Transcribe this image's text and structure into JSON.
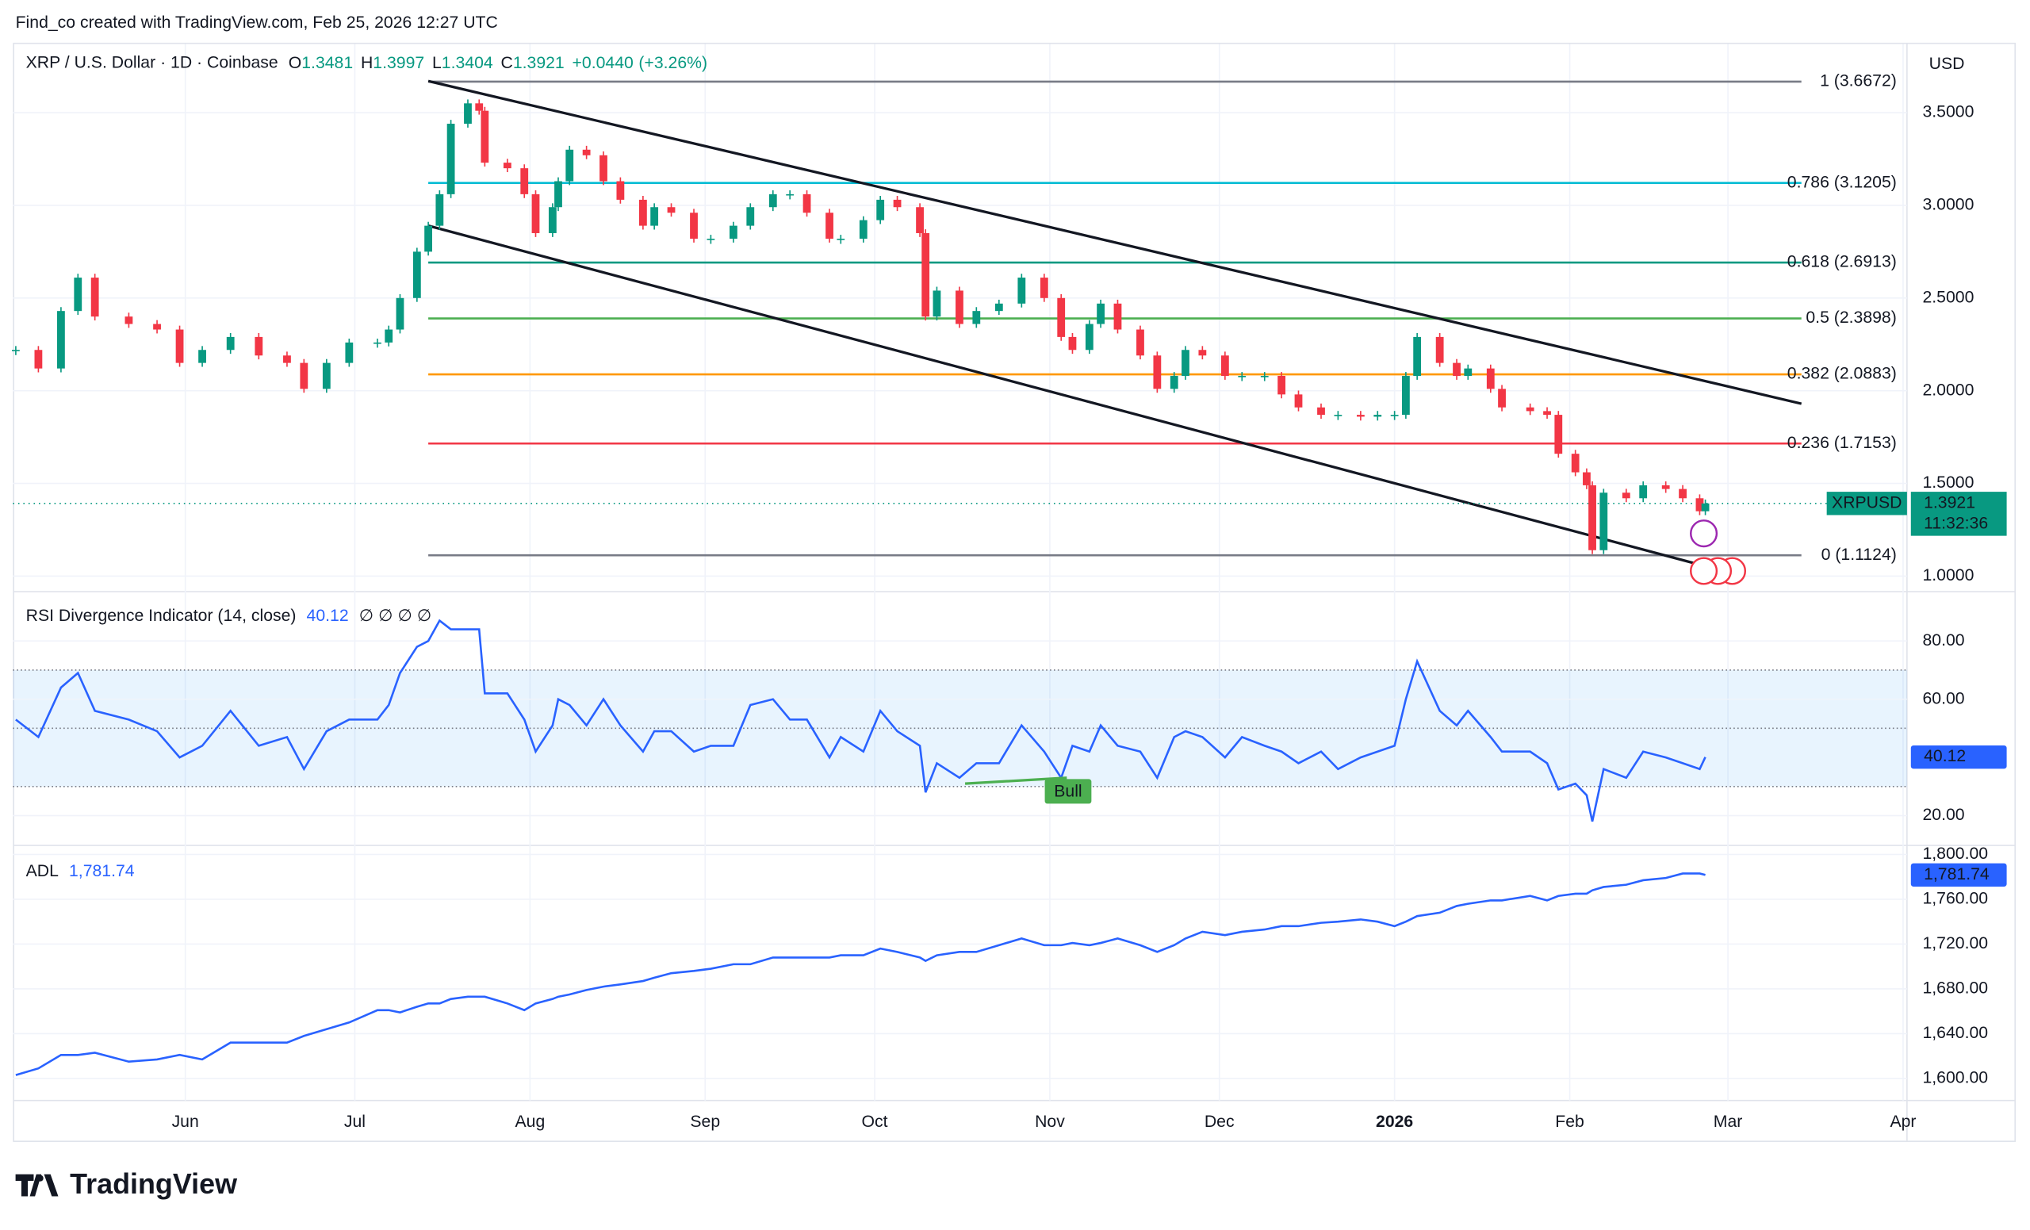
{
  "header": {
    "credit": "Find_co created with TradingView.com, Feb 25, 2026 12:27 UTC",
    "symbol": "XRP / U.S. Dollar · 1D · Coinbase",
    "currency": "USD",
    "ohlc": [
      {
        "key": "O",
        "value": 1.3481
      },
      {
        "key": "H",
        "value": 1.3997
      },
      {
        "key": "L",
        "value": 1.3404
      },
      {
        "key": "C",
        "value": 1.3921
      }
    ],
    "change": {
      "value": 0.044,
      "label": "+0.0440"
    },
    "change_pct": {
      "value": 3.26,
      "label": "(+3.26%)"
    }
  },
  "chart_data": [
    {
      "type": "candlestick",
      "up_color": "#089981",
      "down_color": "#f23645",
      "x": [
        0,
        4,
        8,
        11,
        14,
        20,
        25,
        29,
        33,
        38,
        43,
        48,
        51,
        55,
        59,
        64,
        66,
        68,
        71,
        73,
        75,
        77,
        80,
        82,
        83,
        87,
        90,
        92,
        95,
        96,
        98,
        101,
        104,
        107,
        111,
        113,
        116,
        120,
        123,
        127,
        130,
        134,
        137,
        140,
        144,
        146,
        150,
        153,
        156,
        160,
        161,
        163,
        167,
        170,
        174,
        178,
        182,
        185,
        187,
        190,
        192,
        195,
        199,
        202,
        205,
        207,
        210,
        214,
        217,
        221,
        224,
        227,
        231,
        234,
        238,
        241,
        244,
        246,
        248,
        252,
        255,
        257,
        261,
        263,
        268,
        271,
        273,
        276,
        278,
        279,
        281,
        285,
        288,
        292,
        295,
        298,
        299
      ],
      "close": [
        2.22,
        2.12,
        2.43,
        2.61,
        2.4,
        2.36,
        2.33,
        2.15,
        2.22,
        2.29,
        2.19,
        2.15,
        2.01,
        2.15,
        2.26,
        2.26,
        2.33,
        2.5,
        2.75,
        2.89,
        3.06,
        3.44,
        3.55,
        3.51,
        3.23,
        3.2,
        3.06,
        2.85,
        2.99,
        3.13,
        3.3,
        3.27,
        3.13,
        3.03,
        2.89,
        2.99,
        2.96,
        2.82,
        2.82,
        2.89,
        2.99,
        3.06,
        3.06,
        2.96,
        2.82,
        2.82,
        2.92,
        3.03,
        2.99,
        2.85,
        2.4,
        2.54,
        2.36,
        2.43,
        2.47,
        2.61,
        2.5,
        2.29,
        2.22,
        2.36,
        2.47,
        2.33,
        2.19,
        2.01,
        2.08,
        2.22,
        2.19,
        2.08,
        2.08,
        2.08,
        1.98,
        1.91,
        1.87,
        1.87,
        1.86,
        1.87,
        1.87,
        2.08,
        2.29,
        2.15,
        2.08,
        2.12,
        2.01,
        1.91,
        1.89,
        1.87,
        1.66,
        1.56,
        1.49,
        1.14,
        1.45,
        1.42,
        1.49,
        1.47,
        1.42,
        1.35,
        1.3921
      ],
      "xlim": [
        -0.5,
        334
      ],
      "xticks": [
        {
          "value": 30,
          "label": "Jun"
        },
        {
          "value": 60,
          "label": "Jul"
        },
        {
          "value": 91,
          "label": "Aug"
        },
        {
          "value": 122,
          "label": "Sep"
        },
        {
          "value": 152,
          "label": "Oct"
        },
        {
          "value": 183,
          "label": "Nov"
        },
        {
          "value": 213,
          "label": "Dec"
        },
        {
          "value": 244,
          "label": "2026"
        },
        {
          "value": 275,
          "label": "Feb"
        },
        {
          "value": 303,
          "label": "Mar"
        },
        {
          "value": 334,
          "label": "Apr"
        }
      ],
      "ylim": [
        0.93,
        3.863
      ],
      "yticks": [
        {
          "value": 1,
          "label": "1.0000"
        },
        {
          "value": 1.5,
          "label": "1.5000"
        },
        {
          "value": 2,
          "label": "2.0000"
        },
        {
          "value": 2.5,
          "label": "2.5000"
        },
        {
          "value": 3,
          "label": "3.0000"
        },
        {
          "value": 3.5,
          "label": "3.5000"
        }
      ],
      "grid": true,
      "fib_range": [
        73,
        316
      ],
      "fib_levels": [
        {
          "label": "1 (3.6672)",
          "value": 3.6672,
          "color": "#787b86"
        },
        {
          "label": "0.786 (3.1205)",
          "value": 3.1205,
          "color": "#00bcd4"
        },
        {
          "label": "0.618 (2.6913)",
          "value": 2.6913,
          "color": "#089981"
        },
        {
          "label": "0.5 (2.3898)",
          "value": 2.3898,
          "color": "#4caf50"
        },
        {
          "label": "0.382 (2.0883)",
          "value": 2.0883,
          "color": "#ff9800"
        },
        {
          "label": "0.236 (1.7153)",
          "value": 1.7153,
          "color": "#f23645"
        },
        {
          "label": "0 (1.1124)",
          "value": 1.1124,
          "color": "#787b86"
        }
      ],
      "trendlines": [
        {
          "x": [
            73,
            316
          ],
          "y": [
            3.67,
            1.93
          ]
        },
        {
          "x": [
            73,
            297
          ],
          "y": [
            2.89,
            1.07
          ]
        }
      ],
      "last_price": {
        "symbol": "XRPUSD",
        "value": 1.3921,
        "countdown": "11:32:36",
        "color": "#089981"
      }
    },
    {
      "type": "line",
      "title": "RSI Divergence Indicator (14, close)",
      "flags": "∅ ∅ ∅ ∅",
      "color": "#2962ff",
      "values": [
        53,
        47,
        64,
        69,
        56,
        53,
        49,
        40,
        44,
        56,
        44,
        47,
        36,
        49,
        53,
        53,
        58,
        69,
        78,
        80,
        87,
        84,
        84,
        84,
        62,
        62,
        53,
        42,
        51,
        60,
        58,
        51,
        60,
        51,
        42,
        49,
        49,
        42,
        44,
        44,
        58,
        60,
        53,
        53,
        40,
        47,
        42,
        56,
        49,
        44,
        28,
        38,
        33,
        38,
        38,
        51,
        42,
        33,
        44,
        42,
        51,
        44,
        42,
        33,
        47,
        49,
        47,
        40,
        47,
        44,
        42,
        38,
        42,
        36,
        40,
        42,
        44,
        60,
        73,
        56,
        51,
        56,
        47,
        42,
        42,
        38,
        29,
        31,
        27,
        18,
        36,
        33,
        42,
        40,
        38,
        36,
        40.12
      ],
      "last": 40.12,
      "ylim": [
        10.2,
        94.7
      ],
      "yticks": [
        {
          "value": 20,
          "label": "20.00"
        },
        {
          "value": 60,
          "label": "60.00"
        },
        {
          "value": 80,
          "label": "80.00"
        }
      ],
      "band": [
        30,
        70
      ],
      "midline": 50,
      "grid": true,
      "divergence": {
        "label": "Bull",
        "x": [
          168,
          186
        ],
        "y": [
          31,
          33
        ],
        "color": "#4caf50"
      }
    },
    {
      "type": "line",
      "title": "ADL",
      "color": "#2962ff",
      "values": [
        1603,
        1609,
        1621,
        1621,
        1623,
        1615,
        1617,
        1621,
        1617,
        1632,
        1632,
        1632,
        1638,
        1644,
        1650,
        1661,
        1661,
        1659,
        1664,
        1667,
        1667,
        1671,
        1673,
        1673,
        1673,
        1667,
        1661,
        1667,
        1671,
        1673,
        1675,
        1679,
        1682,
        1684,
        1687,
        1690,
        1694,
        1696,
        1698,
        1702,
        1702,
        1708,
        1708,
        1708,
        1708,
        1710,
        1710,
        1716,
        1713,
        1708,
        1705,
        1710,
        1713,
        1713,
        1719,
        1725,
        1719,
        1719,
        1721,
        1719,
        1721,
        1725,
        1719,
        1713,
        1719,
        1725,
        1731,
        1728,
        1731,
        1733,
        1736,
        1736,
        1739,
        1740,
        1742,
        1740,
        1736,
        1740,
        1745,
        1748,
        1754,
        1756,
        1759,
        1759,
        1763,
        1759,
        1763,
        1765,
        1765,
        1768,
        1771,
        1773,
        1777,
        1779,
        1783,
        1783,
        1781.74
      ],
      "last": {
        "value": 1781.74,
        "label": "1,781.74"
      },
      "ylim": [
        1580.3,
        1806.9
      ],
      "yticks": [
        {
          "value": 1600,
          "label": "1,600.00"
        },
        {
          "value": 1640,
          "label": "1,640.00"
        },
        {
          "value": 1680,
          "label": "1,680.00"
        },
        {
          "value": 1720,
          "label": "1,720.00"
        },
        {
          "value": 1760,
          "label": "1,760.00"
        },
        {
          "value": 1800,
          "label": "1,800.00"
        }
      ],
      "grid": true
    }
  ],
  "footer": {
    "brand": "TradingView"
  }
}
